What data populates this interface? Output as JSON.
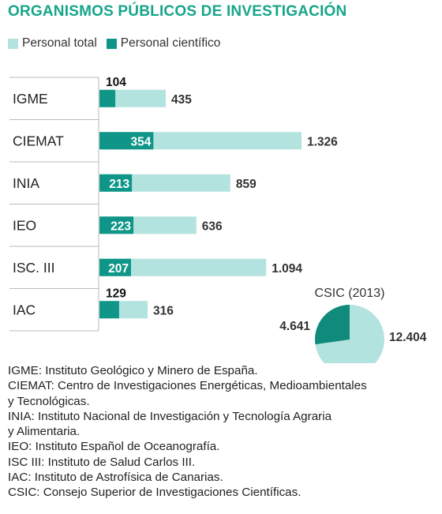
{
  "title": "ORGANISMOS PÚBLICOS DE INVESTIGACIÓN",
  "legend": {
    "total_label": "Personal total",
    "scientific_label": "Personal científico"
  },
  "colors": {
    "title": "#17a58a",
    "total": "#b3e3de",
    "scientific": "#0f9688",
    "csic_scientific": "#0f8a7b",
    "grid": "#bbbbbb"
  },
  "chart_data": [
    {
      "type": "bar",
      "orientation": "horizontal",
      "categories": [
        "IGME",
        "CIEMAT",
        "INIA",
        "IEO",
        "ISC. III",
        "IAC"
      ],
      "series": [
        {
          "name": "Personal total",
          "values": [
            435,
            1326,
            859,
            636,
            1094,
            316
          ],
          "labels": [
            "435",
            "1.326",
            "859",
            "636",
            "1.094",
            "316"
          ]
        },
        {
          "name": "Personal científico",
          "values": [
            104,
            354,
            213,
            223,
            207,
            129
          ],
          "labels": [
            "104",
            "354",
            "213",
            "223",
            "207",
            "129"
          ]
        }
      ],
      "xlim": [
        0,
        1326
      ]
    },
    {
      "type": "pie",
      "title": "CSIC (2013)",
      "slices": [
        {
          "name": "Personal científico",
          "value": 4641,
          "label": "4.641"
        },
        {
          "name": "Personal total",
          "value": 12404,
          "label": "12.404"
        }
      ]
    }
  ],
  "notes": [
    "IGME: Instituto Geológico y Minero de España.",
    "CIEMAT: Centro de Investigaciones Energéticas, Medioambientales",
    "y Tecnológicas.",
    "INIA: Instituto Nacional de Investigación y Tecnología Agraria",
    "y Alimentaria.",
    "IEO: Instituto Español de Oceanografía.",
    "ISC III: Instituto de Salud Carlos III.",
    "IAC: Instituto de Astrofísica de Canarias.",
    "CSIC: Consejo Superior de Investigaciones Científicas."
  ]
}
